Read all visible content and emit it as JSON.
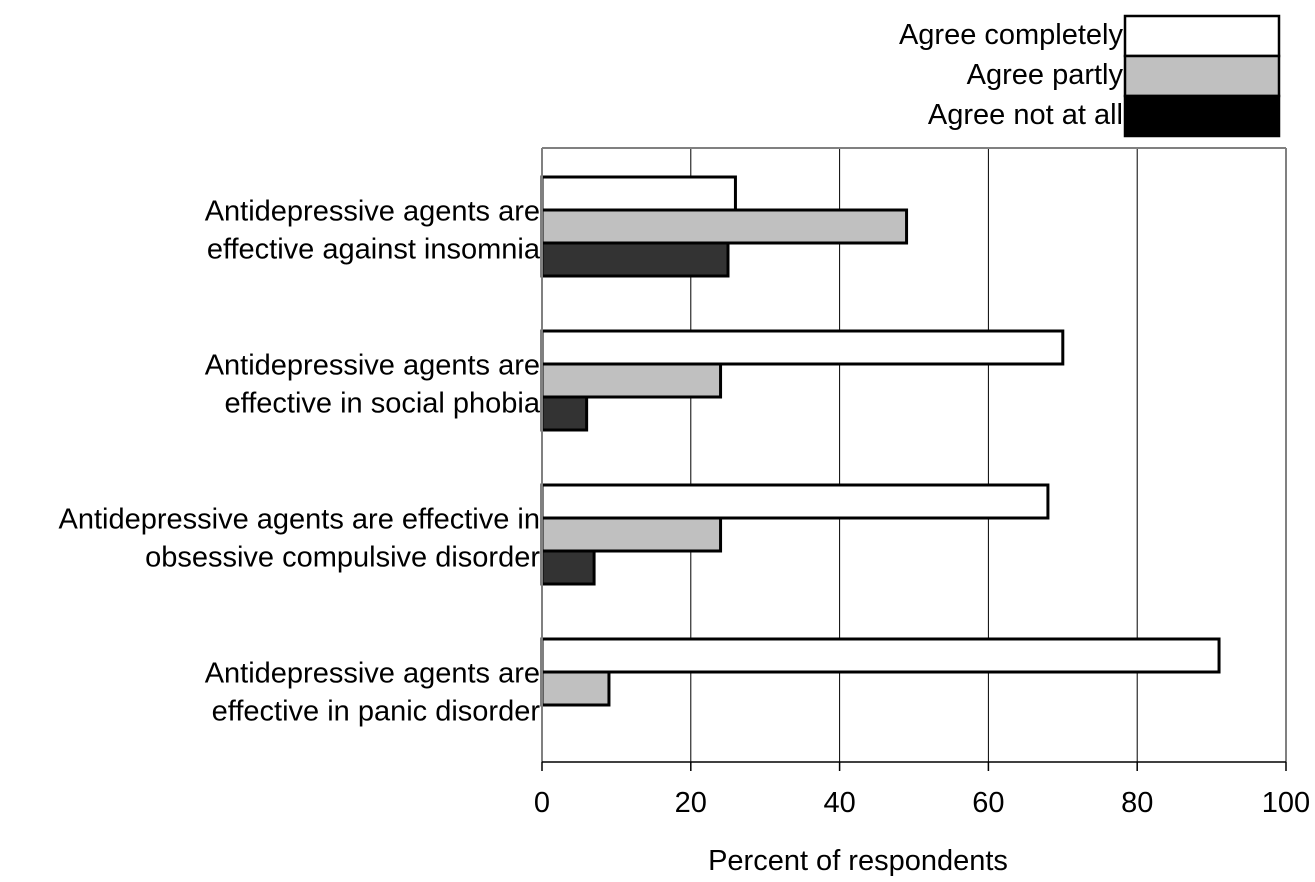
{
  "chart_data": {
    "type": "bar",
    "orientation": "horizontal",
    "title": "",
    "xlabel": "Percent of respondents",
    "ylabel": "",
    "xlim": [
      0,
      100
    ],
    "x_ticks": [
      "0",
      "20",
      "40",
      "60",
      "80",
      "100"
    ],
    "grid": "vertical",
    "legend_position": "top-right",
    "categories": [
      [
        "Antidepressive agents are",
        "effective against insomnia"
      ],
      [
        "Antidepressive agents are",
        "effective in social phobia"
      ],
      [
        "Antidepressive agents are effective in",
        "obsessive compulsive disorder"
      ],
      [
        "Antidepressive agents are",
        "effective in panic disorder"
      ]
    ],
    "series": [
      {
        "name": "Agree completely",
        "color": "#ffffff",
        "values": [
          26,
          70,
          68,
          91
        ]
      },
      {
        "name": "Agree partly",
        "color": "#c0c0c0",
        "values": [
          49,
          24,
          24,
          9
        ]
      },
      {
        "name": "Agree not at all",
        "color": "#333333",
        "values": [
          25,
          6,
          7,
          0
        ]
      }
    ],
    "legend_colors": [
      "#ffffff",
      "#c0c0c0",
      "#000000"
    ]
  }
}
